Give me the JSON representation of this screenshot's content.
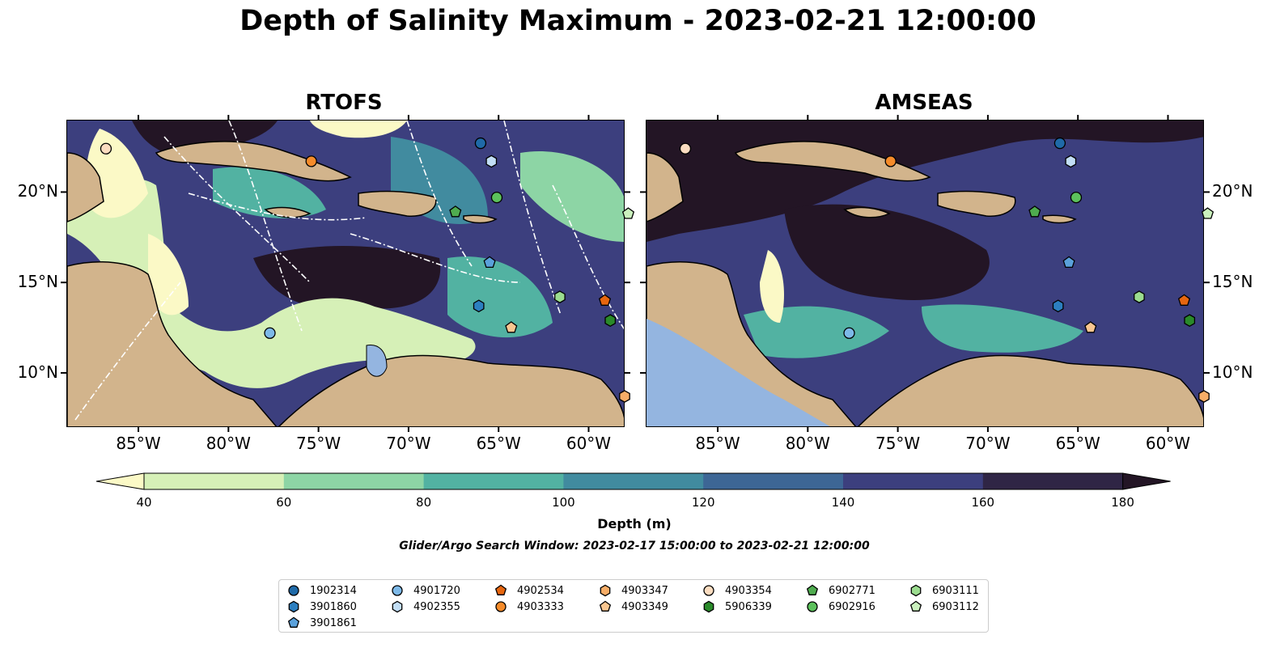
{
  "title": "Depth of Salinity Maximum - 2023-02-21 12:00:00",
  "panels": [
    {
      "name": "RTOFS"
    },
    {
      "name": "AMSEAS"
    }
  ],
  "axes": {
    "lon_ticks": [
      "85°W",
      "80°W",
      "75°W",
      "70°W",
      "65°W",
      "60°W"
    ],
    "lat_ticks": [
      "20°N",
      "15°N",
      "10°N"
    ],
    "lon_range": [
      -89,
      -58
    ],
    "lat_range": [
      7,
      24
    ]
  },
  "colorbar": {
    "label": "Depth (m)",
    "ticks": [
      "40",
      "60",
      "80",
      "100",
      "120",
      "140",
      "160",
      "180"
    ],
    "colors": [
      "#fbf9c6",
      "#d6f0b7",
      "#8dd5a5",
      "#52b2a2",
      "#418b9f",
      "#3d6695",
      "#3c3f7e",
      "#2f2545",
      "#231525"
    ]
  },
  "search_window": "Glider/Argo Search Window: 2023-02-17 15:00:00 to 2023-02-21 12:00:00",
  "platforms": [
    {
      "id": "1902314",
      "marker": "circle",
      "color": "#1f6aa8",
      "lon": -66.0,
      "lat": 22.7
    },
    {
      "id": "3901860",
      "marker": "hexagon",
      "color": "#2c7fc0",
      "lon": -66.1,
      "lat": 13.7
    },
    {
      "id": "3901861",
      "marker": "pentagon",
      "color": "#5aa1db",
      "lon": -65.5,
      "lat": 16.1
    },
    {
      "id": "4901720",
      "marker": "circle",
      "color": "#7db9e8",
      "lon": -77.7,
      "lat": 12.2
    },
    {
      "id": "4902355",
      "marker": "hexagon",
      "color": "#c2def5",
      "lon": -65.4,
      "lat": 21.7
    },
    {
      "id": "4902534",
      "marker": "pentagon",
      "color": "#e6660f",
      "lon": -59.1,
      "lat": 14.0
    },
    {
      "id": "4903333",
      "marker": "circle",
      "color": "#f58b2a",
      "lon": -75.4,
      "lat": 21.7
    },
    {
      "id": "4903347",
      "marker": "hexagon",
      "color": "#f7ad67",
      "lon": -58.0,
      "lat": 8.7
    },
    {
      "id": "4903349",
      "marker": "pentagon",
      "color": "#f9c690",
      "lon": -64.3,
      "lat": 12.5
    },
    {
      "id": "4903354",
      "marker": "circle",
      "color": "#fbdcc0",
      "lon": -86.8,
      "lat": 22.4
    },
    {
      "id": "5906339",
      "marker": "hexagon",
      "color": "#2a8a2a",
      "lon": -58.8,
      "lat": 12.9
    },
    {
      "id": "6902771",
      "marker": "pentagon",
      "color": "#4fac4f",
      "lon": -67.4,
      "lat": 18.9
    },
    {
      "id": "6902916",
      "marker": "circle",
      "color": "#5cc15c",
      "lon": -65.1,
      "lat": 19.7
    },
    {
      "id": "6903111",
      "marker": "hexagon",
      "color": "#9bdc8f",
      "lon": -61.6,
      "lat": 14.2
    },
    {
      "id": "6903112",
      "marker": "pentagon",
      "color": "#caf0bd",
      "lon": -57.8,
      "lat": 18.8
    }
  ]
}
